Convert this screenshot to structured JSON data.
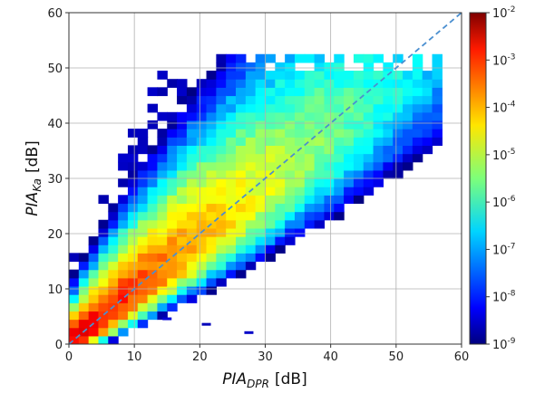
{
  "chart_data": {
    "type": "heatmap",
    "title": "",
    "xlabel": {
      "main": "PIA",
      "sub": "DPR",
      "unit": "[dB]"
    },
    "ylabel": {
      "main": "PIA",
      "sub": "Ka",
      "unit": "[dB]"
    },
    "xlim": [
      0,
      60
    ],
    "ylim": [
      0,
      60
    ],
    "xticks": [
      0,
      10,
      20,
      30,
      40,
      50,
      60
    ],
    "yticks": [
      0,
      10,
      20,
      30,
      40,
      50,
      60
    ],
    "grid": true,
    "reference_line": {
      "type": "1:1",
      "from": [
        0,
        0
      ],
      "to": [
        60,
        60
      ],
      "style": "dashed",
      "color": "#4a8fd0"
    },
    "bin_size_db": [
      1.5,
      1.5
    ],
    "colorbar": {
      "scale": "log",
      "min_exp": -9,
      "max_exp": -2,
      "tick_labels": [
        {
          "base": "10",
          "exp": "-2"
        },
        {
          "base": "10",
          "exp": "-3"
        },
        {
          "base": "10",
          "exp": "-4"
        },
        {
          "base": "10",
          "exp": "-5"
        },
        {
          "base": "10",
          "exp": "-6"
        },
        {
          "base": "10",
          "exp": "-7"
        },
        {
          "base": "10",
          "exp": "-8"
        },
        {
          "base": "10",
          "exp": "-9"
        }
      ],
      "colormap": "jet"
    },
    "density_model": {
      "description_values": "log10 density by distance from diagonal and PIA magnitude",
      "peak_log10": -2.6,
      "peak_near": [
        2,
        2
      ]
    },
    "notable_outlier_bins": [
      {
        "x": 27.5,
        "y": 2.0,
        "log10": -8.5
      },
      {
        "x": 21,
        "y": 3.5,
        "log10": -8.6
      },
      {
        "x": 15,
        "y": 4.5,
        "log10": -8.4
      }
    ]
  }
}
